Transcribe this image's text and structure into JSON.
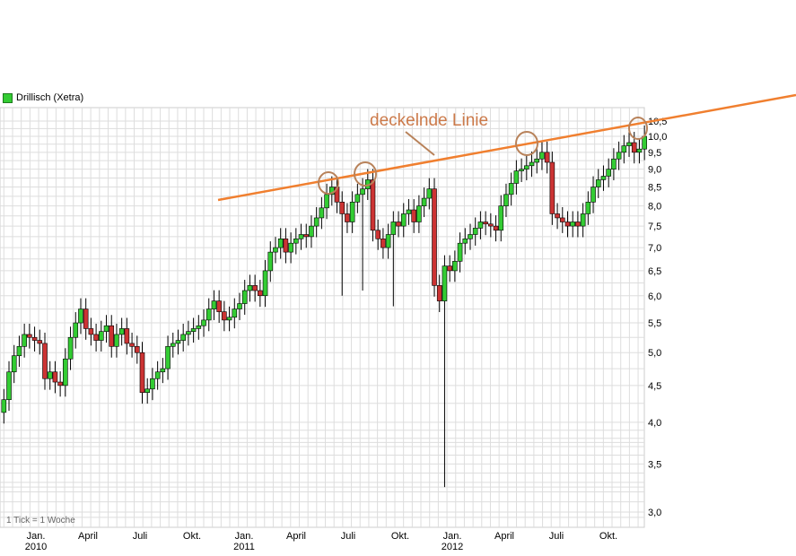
{
  "legend": {
    "label": "Drillisch (Xetra)",
    "color": "#33cc33"
  },
  "footnote": "1 Tick = 1 Woche",
  "annotation": {
    "text": "deckelnde Linie",
    "color": "#e8823e"
  },
  "colors": {
    "up": "#33cc33",
    "down": "#cc3333",
    "grid": "#dddddd",
    "trendline": "#f07f2f",
    "circle": "#b8825a"
  },
  "chart_data": {
    "type": "candlestick",
    "title": "",
    "scale": "log",
    "ylim": [
      2.9,
      10.6
    ],
    "y_ticks": [
      "10,5",
      "10,0",
      "9,5",
      "9,0",
      "8,5",
      "8,0",
      "7,5",
      "7,0",
      "6,5",
      "6,0",
      "5,5",
      "5,0",
      "4,5",
      "4,0",
      "3,5",
      "3,0"
    ],
    "y_tick_values": [
      10.5,
      10,
      9.5,
      9,
      8.5,
      8,
      7.5,
      7,
      6.5,
      6,
      5.5,
      5,
      4.5,
      4,
      3.5,
      3
    ],
    "x_ticks": [
      {
        "label": "Jan.",
        "sub": "2010",
        "week": 0
      },
      {
        "label": "April",
        "sub": "",
        "week": 13
      },
      {
        "label": "Juli",
        "sub": "",
        "week": 26
      },
      {
        "label": "Okt.",
        "sub": "",
        "week": 39
      },
      {
        "label": "Jan.",
        "sub": "2011",
        "week": 52
      },
      {
        "label": "April",
        "sub": "",
        "week": 65
      },
      {
        "label": "Juli",
        "sub": "",
        "week": 78
      },
      {
        "label": "Okt.",
        "sub": "",
        "week": 91
      },
      {
        "label": "Jan.",
        "sub": "2012",
        "week": 104
      },
      {
        "label": "April",
        "sub": "",
        "week": 117
      },
      {
        "label": "Juli",
        "sub": "",
        "week": 130
      },
      {
        "label": "Okt.",
        "sub": "",
        "week": 143
      }
    ],
    "week_start": -8,
    "week_end": 152,
    "closes": [
      4.3,
      4.7,
      4.95,
      5.1,
      5.3,
      5.25,
      5.2,
      5.15,
      4.6,
      4.7,
      4.55,
      4.5,
      4.9,
      5.25,
      5.5,
      5.75,
      5.4,
      5.3,
      5.2,
      5.35,
      5.45,
      5.1,
      5.3,
      5.4,
      5.15,
      5.1,
      5.0,
      4.4,
      4.45,
      4.6,
      4.7,
      4.75,
      5.1,
      5.15,
      5.2,
      5.3,
      5.35,
      5.4,
      5.45,
      5.55,
      5.75,
      5.9,
      5.7,
      5.55,
      5.6,
      5.75,
      5.85,
      6.1,
      6.2,
      6.1,
      6.0,
      6.5,
      6.9,
      7.0,
      7.2,
      6.9,
      7.1,
      7.2,
      7.3,
      7.25,
      7.5,
      7.7,
      7.95,
      8.3,
      8.5,
      8.1,
      7.8,
      7.6,
      8.1,
      8.3,
      8.45,
      8.7,
      7.4,
      7.2,
      7.0,
      7.3,
      7.6,
      7.5,
      7.8,
      7.9,
      7.6,
      8.0,
      8.2,
      8.45,
      6.2,
      5.9,
      6.6,
      6.5,
      6.7,
      7.1,
      7.2,
      7.3,
      7.45,
      7.6,
      7.55,
      7.5,
      7.4,
      8.0,
      8.3,
      8.6,
      8.95,
      9.0,
      9.1,
      9.2,
      9.3,
      9.5,
      9.2,
      7.8,
      7.7,
      7.6,
      7.5,
      7.6,
      7.5,
      7.8,
      8.1,
      8.5,
      8.7,
      8.8,
      9.0,
      9.3,
      9.5,
      9.7,
      9.8,
      9.5,
      9.6,
      10.0
    ]
  }
}
